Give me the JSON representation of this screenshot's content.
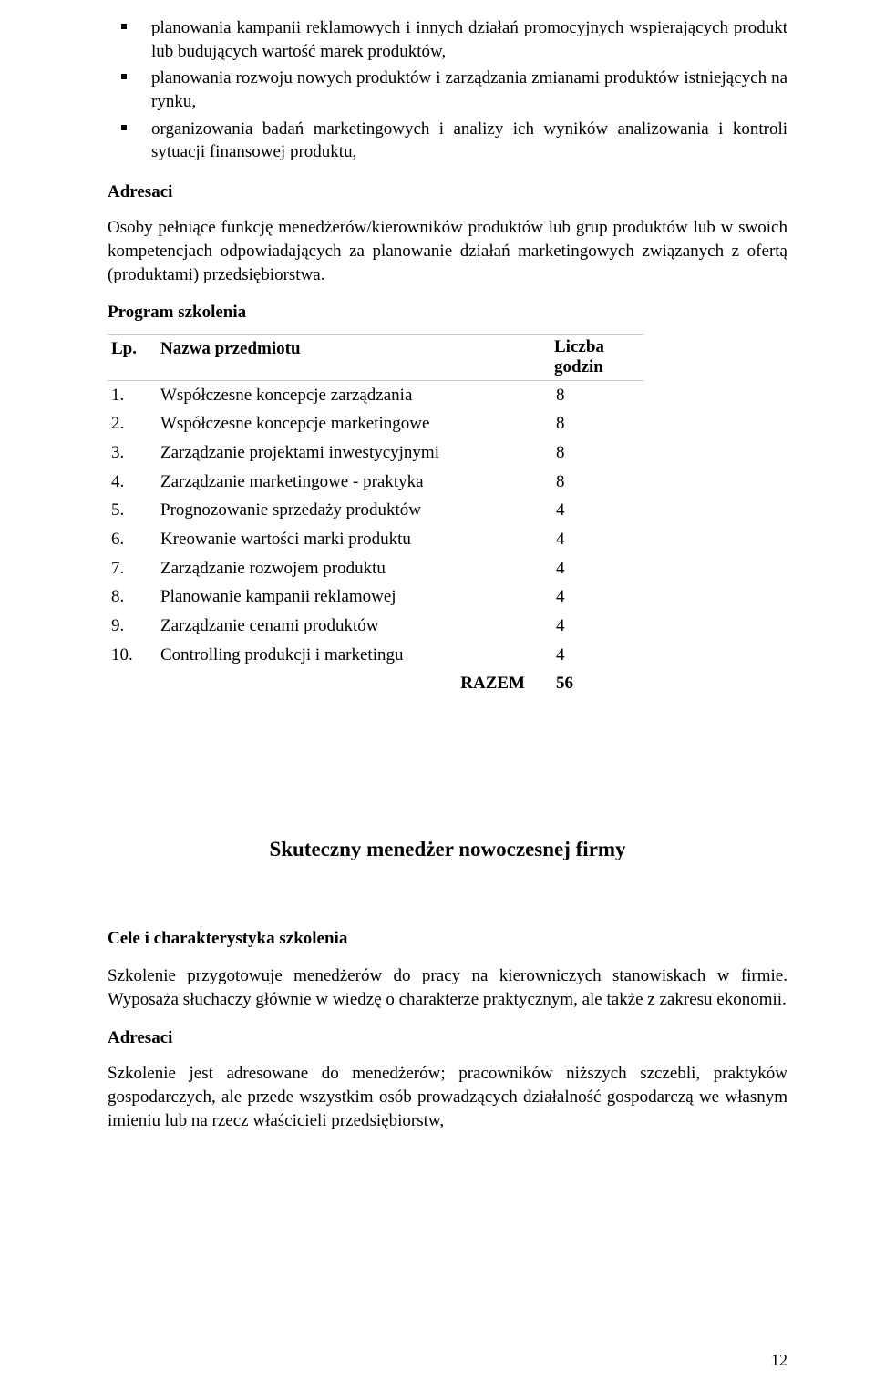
{
  "bullets": [
    "planowania kampanii reklamowych i innych działań promocyjnych wspierających produkt lub budujących wartość marek produktów,",
    "planowania rozwoju nowych produktów i zarządzania zmianami produktów istniejących na rynku,",
    "organizowania badań marketingowych i analizy ich wyników analizowania i kontroli sytuacji finansowej produktu,"
  ],
  "adresaci_heading": "Adresaci",
  "adresaci_text": "Osoby pełniące funkcję menedżerów/kierowników produktów lub grup produktów lub w swoich kompetencjach odpowiadających za planowanie działań marketingowych związanych z ofertą (produktami) przedsiębiorstwa.",
  "program_heading": "Program szkolenia",
  "table": {
    "head_lp": "Lp.",
    "head_name": "Nazwa przedmiotu",
    "head_hours_l1": "Liczba",
    "head_hours_l2": "godzin",
    "rows": [
      {
        "lp": "1.",
        "name": "Współczesne koncepcje zarządzania",
        "hours": "8"
      },
      {
        "lp": "2.",
        "name": "Współczesne koncepcje marketingowe",
        "hours": "8"
      },
      {
        "lp": "3.",
        "name": "Zarządzanie projektami inwestycyjnymi",
        "hours": "8"
      },
      {
        "lp": "4.",
        "name": "Zarządzanie marketingowe - praktyka",
        "hours": "8"
      },
      {
        "lp": "5.",
        "name": "Prognozowanie sprzedaży produktów",
        "hours": "4"
      },
      {
        "lp": "6.",
        "name": "Kreowanie wartości marki produktu",
        "hours": "4"
      },
      {
        "lp": "7.",
        "name": "Zarządzanie rozwojem produktu",
        "hours": "4"
      },
      {
        "lp": "8.",
        "name": "Planowanie kampanii reklamowej",
        "hours": "4"
      },
      {
        "lp": "9.",
        "name": "Zarządzanie cenami produktów",
        "hours": "4"
      },
      {
        "lp": "10.",
        "name": "Controlling produkcji i marketingu",
        "hours": "4"
      }
    ],
    "total_label": "RAZEM",
    "total_hours": "56"
  },
  "section_title": "Skuteczny menedżer nowoczesnej firmy",
  "cele_heading": "Cele i charakterystyka szkolenia",
  "cele_text": "Szkolenie przygotowuje menedżerów do pracy na kierowniczych stanowiskach w firmie. Wyposaża słuchaczy głównie w wiedzę o charakterze praktycznym, ale także z zakresu ekonomii.",
  "adresaci2_heading": "Adresaci",
  "adresaci2_text": "Szkolenie jest adresowane do menedżerów; pracowników niższych szczebli, praktyków gospodarczych, ale przede wszystkim osób prowadzących działalność gospodarczą we własnym imieniu lub na rzecz właścicieli przedsiębiorstw,",
  "page_number": "12"
}
